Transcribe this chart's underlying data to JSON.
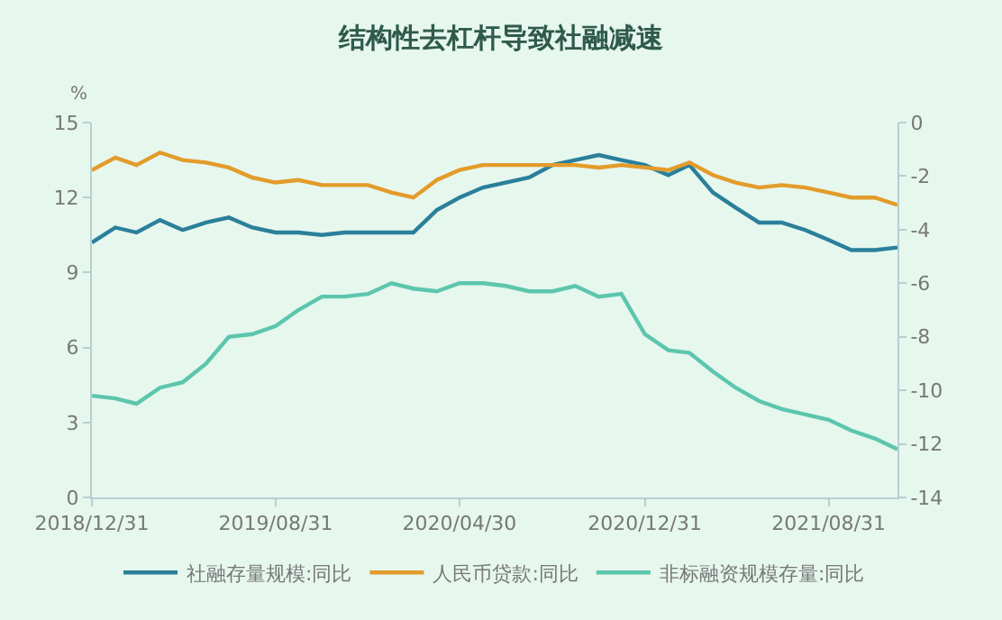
{
  "chart_data": {
    "type": "line",
    "title": "结构性去杠杆导致社融减速",
    "ylabel": "%",
    "x": [
      "2018-12-31",
      "2019-01-31",
      "2019-02-28",
      "2019-03-31",
      "2019-04-30",
      "2019-05-31",
      "2019-06-30",
      "2019-07-31",
      "2019-08-31",
      "2019-09-30",
      "2019-10-31",
      "2019-11-30",
      "2019-12-31",
      "2020-01-31",
      "2020-02-29",
      "2020-03-31",
      "2020-04-30",
      "2020-05-31",
      "2020-06-30",
      "2020-07-31",
      "2020-08-31",
      "2020-09-30",
      "2020-10-31",
      "2020-11-30",
      "2020-12-31",
      "2021-01-31",
      "2021-02-28",
      "2021-03-31",
      "2021-04-30",
      "2021-05-31",
      "2021-06-30",
      "2021-07-31",
      "2021-08-31",
      "2021-09-30",
      "2021-10-31",
      "2021-11-30"
    ],
    "series": [
      {
        "name": "社融存量规模:同比",
        "color": "#2b7f9a",
        "values": [
          10.2,
          10.8,
          10.6,
          11.1,
          10.7,
          11.0,
          11.2,
          10.8,
          10.6,
          10.6,
          10.5,
          10.6,
          10.6,
          10.6,
          10.6,
          11.5,
          12.0,
          12.4,
          12.6,
          12.8,
          13.3,
          13.5,
          13.7,
          13.5,
          13.3,
          12.9,
          13.3,
          12.2,
          11.6,
          11.0,
          11.0,
          10.7,
          10.3,
          9.9,
          9.9,
          10.0
        ]
      },
      {
        "name": "人民币贷款:同比",
        "color": "#e39b2a",
        "values": [
          13.1,
          13.6,
          13.3,
          13.8,
          13.5,
          13.4,
          13.2,
          12.8,
          12.6,
          12.7,
          12.5,
          12.5,
          12.5,
          12.2,
          12.0,
          12.7,
          13.1,
          13.3,
          13.3,
          13.3,
          13.3,
          13.3,
          13.2,
          13.3,
          13.2,
          13.1,
          13.4,
          12.9,
          12.6,
          12.4,
          12.5,
          12.4,
          12.2,
          12.0,
          12.0,
          11.7
        ]
      },
      {
        "name": "非标融资规模存量:同比",
        "color": "#5cc6ad",
        "axis": "y2",
        "values": [
          -10.2,
          -10.3,
          -10.5,
          -9.9,
          -9.7,
          -9.0,
          -8.0,
          -7.9,
          -7.6,
          -7.0,
          -6.5,
          -6.5,
          -6.4,
          -6.0,
          -6.2,
          -6.3,
          -6.0,
          -6.0,
          -6.1,
          -6.3,
          -6.3,
          -6.1,
          -6.5,
          -6.4,
          -7.9,
          -8.5,
          -8.6,
          -9.3,
          -9.9,
          -10.4,
          -10.7,
          -10.9,
          -11.1,
          -11.5,
          -11.8,
          -12.2
        ]
      }
    ],
    "xlim": [
      "2018-12-31",
      "2021-11-30"
    ],
    "xticks": [
      {
        "value": "2018-12-31",
        "label": "2018/12/31"
      },
      {
        "value": "2019-08-31",
        "label": "2019/08/31"
      },
      {
        "value": "2020-04-30",
        "label": "2020/04/30"
      },
      {
        "value": "2020-12-31",
        "label": "2020/12/31"
      },
      {
        "value": "2021-08-31",
        "label": "2021/08/31"
      }
    ],
    "ylim": [
      0,
      15
    ],
    "yticks": [
      0,
      3,
      6,
      9,
      12,
      15
    ],
    "y2lim": [
      -14,
      0
    ],
    "y2ticks": [
      -14,
      -12,
      -10,
      -8,
      -6,
      -4,
      -2,
      0
    ],
    "grid": false,
    "legend": "bottom",
    "line_style": "solid"
  }
}
